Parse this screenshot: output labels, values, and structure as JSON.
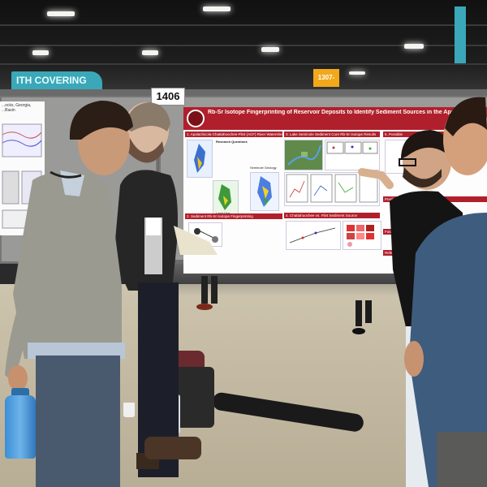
{
  "scene": {
    "description_visible_text": true
  },
  "banners": {
    "left_banner_text": "ITH COVERING",
    "booth_sign": "1307-1322"
  },
  "board": {
    "number": "1406"
  },
  "poster_left": {
    "header": "...ocks, Georgia, ...Basin"
  },
  "poster": {
    "title": "Rb-Sr Isotope Fingerprinting of Reservoir Deposits to Identify Sediment Sources in the Apalachicola-Chattahoochee-Flint River Water",
    "section_1": "1. Apalachicola-Chattahoochee-Flint (ACF) River Watershed",
    "section_1_sub": "Research Questions",
    "section_2": "2. Sediment Rb-Sr Isotope Fingerprinting",
    "section_3": "3. Lake Seminole Sediment Core Rb-Sr Isotope Results",
    "section_4": "4. Chattahoochee vs. Flint Sediment Source",
    "section_5": "5. Possible",
    "section_5b": "Prediction",
    "section_6": "Future W",
    "section_7": "Refere",
    "note_1": "Seminole Geology",
    "note_2": "Land Use"
  },
  "colors": {
    "poster_red": "#b0202c",
    "banner_teal": "#3aa8b8",
    "sign_orange": "#f2a81b"
  }
}
